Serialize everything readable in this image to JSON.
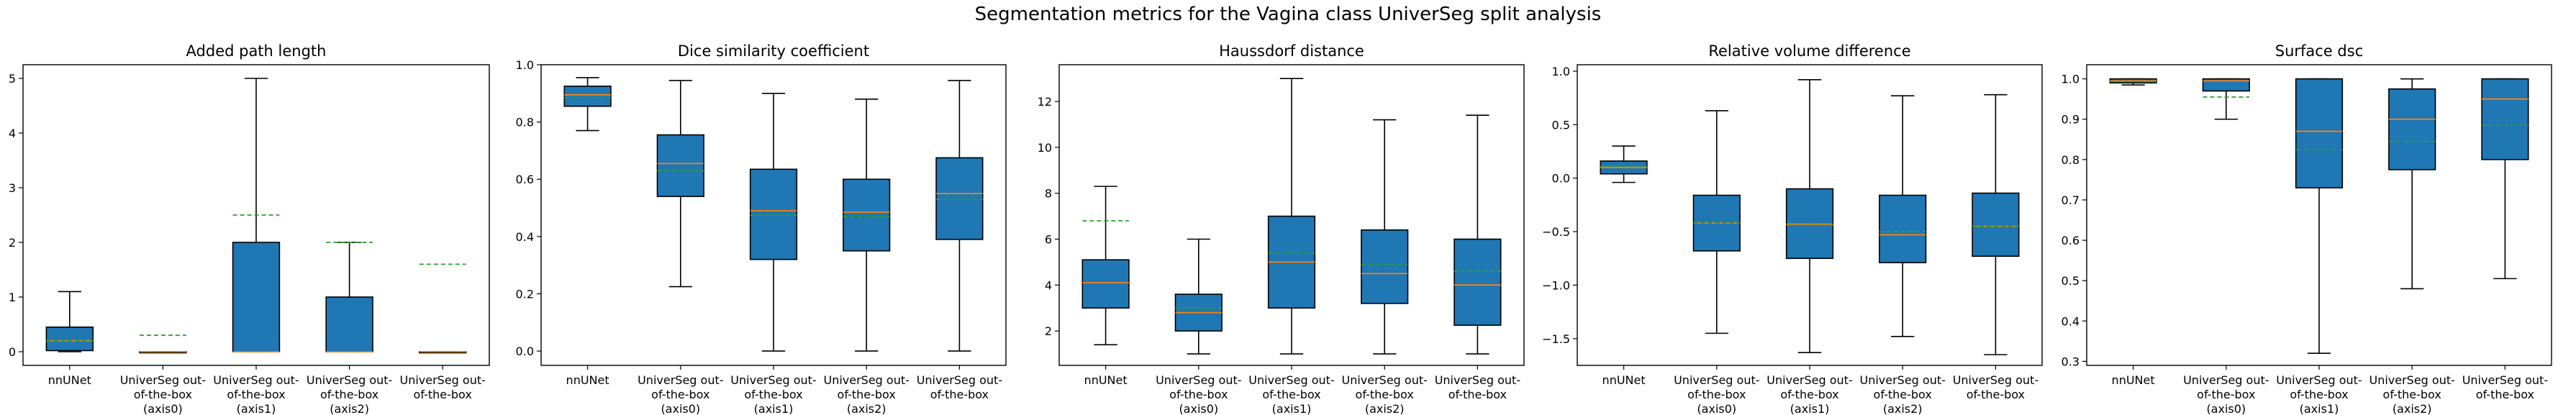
{
  "figure": {
    "title": "Segmentation metrics for the Vagina class UniverSeg split analysis",
    "categories": [
      [
        "nnUNet"
      ],
      [
        "UniverSeg out-",
        "of-the-box",
        "(axis0)"
      ],
      [
        "UniverSeg out-",
        "of-the-box",
        "(axis1)"
      ],
      [
        "UniverSeg out-",
        "of-the-box",
        "(axis2)"
      ],
      [
        "UniverSeg out-",
        "of-the-box"
      ]
    ],
    "colors": {
      "box": "#1f77b4",
      "median": "#ff7f0e",
      "mean": "#2ca02c",
      "axis": "#000000"
    }
  },
  "chart_data": [
    {
      "type": "boxplot",
      "title": "Added path length",
      "ylim": [
        -0.25,
        5.25
      ],
      "yticks": [
        0,
        1,
        2,
        3,
        4,
        5
      ],
      "boxes": [
        {
          "whislo": 0.0,
          "q1": 0.02,
          "med": 0.2,
          "q3": 0.45,
          "whishi": 1.1,
          "mean": 0.2
        },
        {
          "whislo": 0.0,
          "q1": 0.0,
          "med": 0.0,
          "q3": 0.0,
          "whishi": 0.0,
          "mean": 0.3
        },
        {
          "whislo": 0.0,
          "q1": 0.0,
          "med": 0.0,
          "q3": 2.0,
          "whishi": 5.0,
          "mean": 2.5
        },
        {
          "whislo": 0.0,
          "q1": 0.0,
          "med": 0.0,
          "q3": 1.0,
          "whishi": 2.0,
          "mean": 2.0
        },
        {
          "whislo": 0.0,
          "q1": 0.0,
          "med": 0.0,
          "q3": 0.0,
          "whishi": 0.0,
          "mean": 1.6
        }
      ]
    },
    {
      "type": "boxplot",
      "title": "Dice similarity coefficient",
      "ylim": [
        -0.05,
        1.0
      ],
      "yticks": [
        0.0,
        0.2,
        0.4,
        0.6,
        0.8,
        1.0
      ],
      "boxes": [
        {
          "whislo": 0.77,
          "q1": 0.855,
          "med": 0.895,
          "q3": 0.925,
          "whishi": 0.955,
          "mean": 0.885
        },
        {
          "whislo": 0.225,
          "q1": 0.54,
          "med": 0.655,
          "q3": 0.755,
          "whishi": 0.945,
          "mean": 0.63
        },
        {
          "whislo": 0.0,
          "q1": 0.32,
          "med": 0.49,
          "q3": 0.635,
          "whishi": 0.9,
          "mean": 0.475
        },
        {
          "whislo": 0.0,
          "q1": 0.35,
          "med": 0.485,
          "q3": 0.6,
          "whishi": 0.88,
          "mean": 0.47
        },
        {
          "whislo": 0.0,
          "q1": 0.39,
          "med": 0.55,
          "q3": 0.675,
          "whishi": 0.945,
          "mean": 0.53
        }
      ]
    },
    {
      "type": "boxplot",
      "title": "Haussdorf distance",
      "ylim": [
        0.5,
        13.6
      ],
      "yticks": [
        2,
        4,
        6,
        8,
        10,
        12
      ],
      "boxes": [
        {
          "whislo": 1.4,
          "q1": 3.0,
          "med": 4.1,
          "q3": 5.1,
          "whishi": 8.3,
          "mean": 6.8
        },
        {
          "whislo": 1.0,
          "q1": 2.0,
          "med": 2.8,
          "q3": 3.6,
          "whishi": 6.0,
          "mean": 3.0
        },
        {
          "whislo": 1.0,
          "q1": 3.0,
          "med": 5.0,
          "q3": 7.0,
          "whishi": 13.0,
          "mean": 5.4
        },
        {
          "whislo": 1.0,
          "q1": 3.2,
          "med": 4.5,
          "q3": 6.4,
          "whishi": 11.2,
          "mean": 4.9
        },
        {
          "whislo": 1.0,
          "q1": 2.25,
          "med": 4.0,
          "q3": 6.0,
          "whishi": 11.4,
          "mean": 4.6
        }
      ]
    },
    {
      "type": "boxplot",
      "title": "Relative volume difference",
      "ylim": [
        -1.75,
        1.06
      ],
      "yticks": [
        -1.5,
        -1.0,
        -0.5,
        0.0,
        0.5,
        1.0
      ],
      "boxes": [
        {
          "whislo": -0.04,
          "q1": 0.04,
          "med": 0.1,
          "q3": 0.16,
          "whishi": 0.3,
          "mean": 0.11
        },
        {
          "whislo": -1.45,
          "q1": -0.68,
          "med": -0.42,
          "q3": -0.16,
          "whishi": 0.63,
          "mean": -0.42
        },
        {
          "whislo": -1.63,
          "q1": -0.75,
          "med": -0.43,
          "q3": -0.1,
          "whishi": 0.92,
          "mean": -0.44
        },
        {
          "whislo": -1.48,
          "q1": -0.79,
          "med": -0.53,
          "q3": -0.16,
          "whishi": 0.77,
          "mean": -0.5
        },
        {
          "whislo": -1.65,
          "q1": -0.73,
          "med": -0.45,
          "q3": -0.14,
          "whishi": 0.78,
          "mean": -0.45
        }
      ]
    },
    {
      "type": "boxplot",
      "title": "Surface dsc",
      "ylim": [
        0.29,
        1.035
      ],
      "yticks": [
        0.3,
        0.4,
        0.5,
        0.6,
        0.7,
        0.8,
        0.9,
        1.0
      ],
      "boxes": [
        {
          "whislo": 0.985,
          "q1": 0.99,
          "med": 0.995,
          "q3": 1.0,
          "whishi": 1.0,
          "mean": 0.993
        },
        {
          "whislo": 0.9,
          "q1": 0.97,
          "med": 0.995,
          "q3": 1.0,
          "whishi": 1.0,
          "mean": 0.955
        },
        {
          "whislo": 0.32,
          "q1": 0.73,
          "med": 0.87,
          "q3": 1.0,
          "whishi": 1.0,
          "mean": 0.825
        },
        {
          "whislo": 0.48,
          "q1": 0.775,
          "med": 0.9,
          "q3": 0.975,
          "whishi": 1.0,
          "mean": 0.845
        },
        {
          "whislo": 0.505,
          "q1": 0.8,
          "med": 0.95,
          "q3": 1.0,
          "whishi": 1.0,
          "mean": 0.885
        }
      ]
    }
  ]
}
